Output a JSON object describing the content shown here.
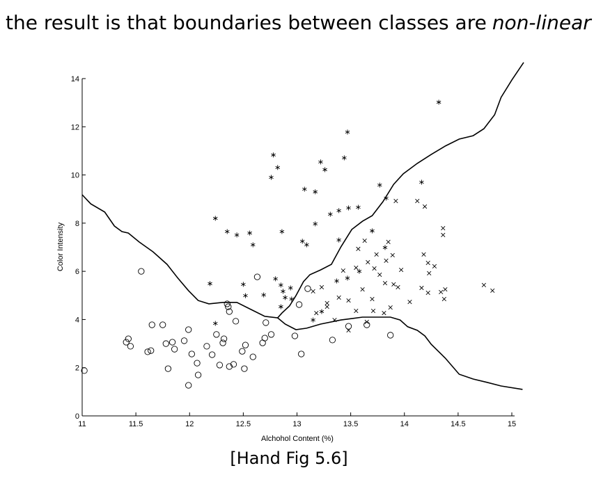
{
  "title": "the result is that boundaries between classes are",
  "title_emphasis": "non-linear",
  "caption": "[Hand Fig 5.6]",
  "chart_data": {
    "type": "scatter",
    "xlabel": "Alchohol Content (%)",
    "ylabel": "Color Intensity",
    "xlim": [
      11,
      15
    ],
    "ylim": [
      0,
      14
    ],
    "xticks": [
      11,
      11.5,
      12,
      12.5,
      13,
      13.5,
      14,
      14.5,
      15
    ],
    "yticks": [
      0,
      2,
      4,
      6,
      8,
      10,
      12,
      14
    ],
    "series": [
      {
        "marker": "circle",
        "color": "#000000",
        "x": [
          11.02,
          11.55,
          11.41,
          11.43,
          11.45,
          11.61,
          11.64,
          11.65,
          11.75,
          11.78,
          11.84,
          11.8,
          11.86,
          11.95,
          11.99,
          11.99,
          12.02,
          12.07,
          12.08,
          12.16,
          12.21,
          12.25,
          12.28,
          12.31,
          12.32,
          12.35,
          12.36,
          12.37,
          12.37,
          12.41,
          12.43,
          12.49,
          12.51,
          12.52,
          12.59,
          12.63,
          12.68,
          12.7,
          12.71,
          12.76,
          12.98,
          13.02,
          13.04,
          13.1,
          13.33,
          13.48,
          13.65,
          13.87
        ],
        "values": [
          1.88,
          6.0,
          3.06,
          3.2,
          2.89,
          2.66,
          2.71,
          3.78,
          3.78,
          3.0,
          3.06,
          1.96,
          2.77,
          3.12,
          3.58,
          1.27,
          2.57,
          2.19,
          1.7,
          2.89,
          2.54,
          3.38,
          2.11,
          3.03,
          3.2,
          4.65,
          4.53,
          4.33,
          2.05,
          2.14,
          3.93,
          2.68,
          1.96,
          2.94,
          2.45,
          5.77,
          3.03,
          3.23,
          3.87,
          3.38,
          3.32,
          4.62,
          2.57,
          5.28,
          3.15,
          3.72,
          3.78,
          3.35
        ]
      },
      {
        "marker": "star",
        "color": "#000000",
        "x": [
          14.32,
          13.47,
          12.78,
          12.82,
          12.76,
          13.22,
          13.26,
          13.44,
          13.07,
          13.17,
          13.31,
          13.39,
          13.48,
          13.57,
          13.77,
          13.83,
          12.24,
          12.35,
          12.44,
          12.56,
          12.59,
          12.86,
          13.17,
          13.39,
          12.19,
          12.5,
          12.52,
          12.69,
          12.8,
          12.85,
          12.87,
          12.94,
          12.89,
          12.85,
          12.95,
          12.24,
          13.05,
          13.09,
          13.15,
          13.23,
          13.37,
          13.47,
          14.16,
          13.7,
          13.82,
          13.58
        ],
        "values": [
          13.02,
          11.78,
          10.83,
          10.31,
          9.9,
          10.54,
          10.22,
          10.71,
          9.41,
          9.3,
          8.37,
          8.52,
          8.63,
          8.66,
          9.58,
          9.04,
          8.2,
          7.65,
          7.51,
          7.59,
          7.1,
          7.65,
          7.97,
          7.3,
          5.49,
          5.46,
          4.99,
          5.02,
          5.69,
          5.43,
          5.17,
          5.31,
          4.91,
          4.53,
          4.85,
          3.84,
          7.25,
          7.1,
          3.98,
          4.33,
          5.6,
          5.72,
          9.7,
          7.68,
          6.99,
          6.0
        ]
      },
      {
        "marker": "cross",
        "color": "#000000",
        "x": [
          14.12,
          14.19,
          14.36,
          14.36,
          13.92,
          13.57,
          13.63,
          13.74,
          13.85,
          13.55,
          13.66,
          13.72,
          13.77,
          13.82,
          13.61,
          13.7,
          13.83,
          13.89,
          13.9,
          13.97,
          14.05,
          14.16,
          14.22,
          14.22,
          14.23,
          14.28,
          14.34,
          14.38,
          14.37,
          14.18,
          14.74,
          14.82,
          13.28,
          13.39,
          13.48,
          13.15,
          13.18,
          13.28,
          13.48,
          13.55,
          13.71,
          13.81,
          13.87,
          13.94,
          13.65,
          13.35,
          13.23,
          13.43
        ],
        "values": [
          8.92,
          8.69,
          7.79,
          7.51,
          8.92,
          6.93,
          7.27,
          6.7,
          7.22,
          6.15,
          6.38,
          6.12,
          5.86,
          5.51,
          5.25,
          4.85,
          6.44,
          6.67,
          5.46,
          6.06,
          4.73,
          5.31,
          5.11,
          6.35,
          5.92,
          6.21,
          5.14,
          5.25,
          4.85,
          6.7,
          5.43,
          5.2,
          4.68,
          4.91,
          4.79,
          5.17,
          4.27,
          4.53,
          3.55,
          4.36,
          4.36,
          4.27,
          4.5,
          5.34,
          3.9,
          3.98,
          5.34,
          6.03
        ]
      }
    ],
    "boundaries": [
      {
        "color": "#000000",
        "x": [
          11.0,
          11.08,
          11.21,
          11.3,
          11.37,
          11.43,
          11.53,
          11.66,
          11.79,
          11.89,
          11.99,
          12.08,
          12.18,
          12.31,
          12.44,
          12.57,
          12.7,
          12.82,
          12.86,
          12.93,
          12.99,
          13.06,
          13.12,
          13.22,
          13.32,
          13.41,
          13.51,
          13.61,
          13.7,
          13.8,
          13.9,
          13.99,
          14.12,
          14.25,
          14.38,
          14.51,
          14.64,
          14.74,
          14.84,
          14.9,
          15.0,
          15.11
        ],
        "values": [
          9.18,
          8.8,
          8.46,
          7.88,
          7.65,
          7.59,
          7.22,
          6.81,
          6.29,
          5.72,
          5.2,
          4.79,
          4.65,
          4.71,
          4.71,
          4.42,
          4.13,
          4.07,
          4.27,
          4.56,
          4.99,
          5.57,
          5.86,
          6.06,
          6.29,
          7.02,
          7.74,
          8.08,
          8.31,
          8.89,
          9.61,
          10.05,
          10.48,
          10.85,
          11.2,
          11.49,
          11.63,
          11.92,
          12.5,
          13.22,
          13.94,
          14.67
        ]
      },
      {
        "color": "#000000",
        "x": [
          12.82,
          12.89,
          12.99,
          13.09,
          13.22,
          13.41,
          13.61,
          13.87,
          13.96,
          14.03,
          14.12,
          14.19,
          14.25,
          14.38,
          14.51,
          14.64,
          14.77,
          14.9,
          15.1
        ],
        "values": [
          4.07,
          3.81,
          3.58,
          3.64,
          3.81,
          3.98,
          4.1,
          4.1,
          3.98,
          3.7,
          3.55,
          3.32,
          2.97,
          2.4,
          1.73,
          1.53,
          1.39,
          1.24,
          1.1
        ]
      }
    ]
  }
}
